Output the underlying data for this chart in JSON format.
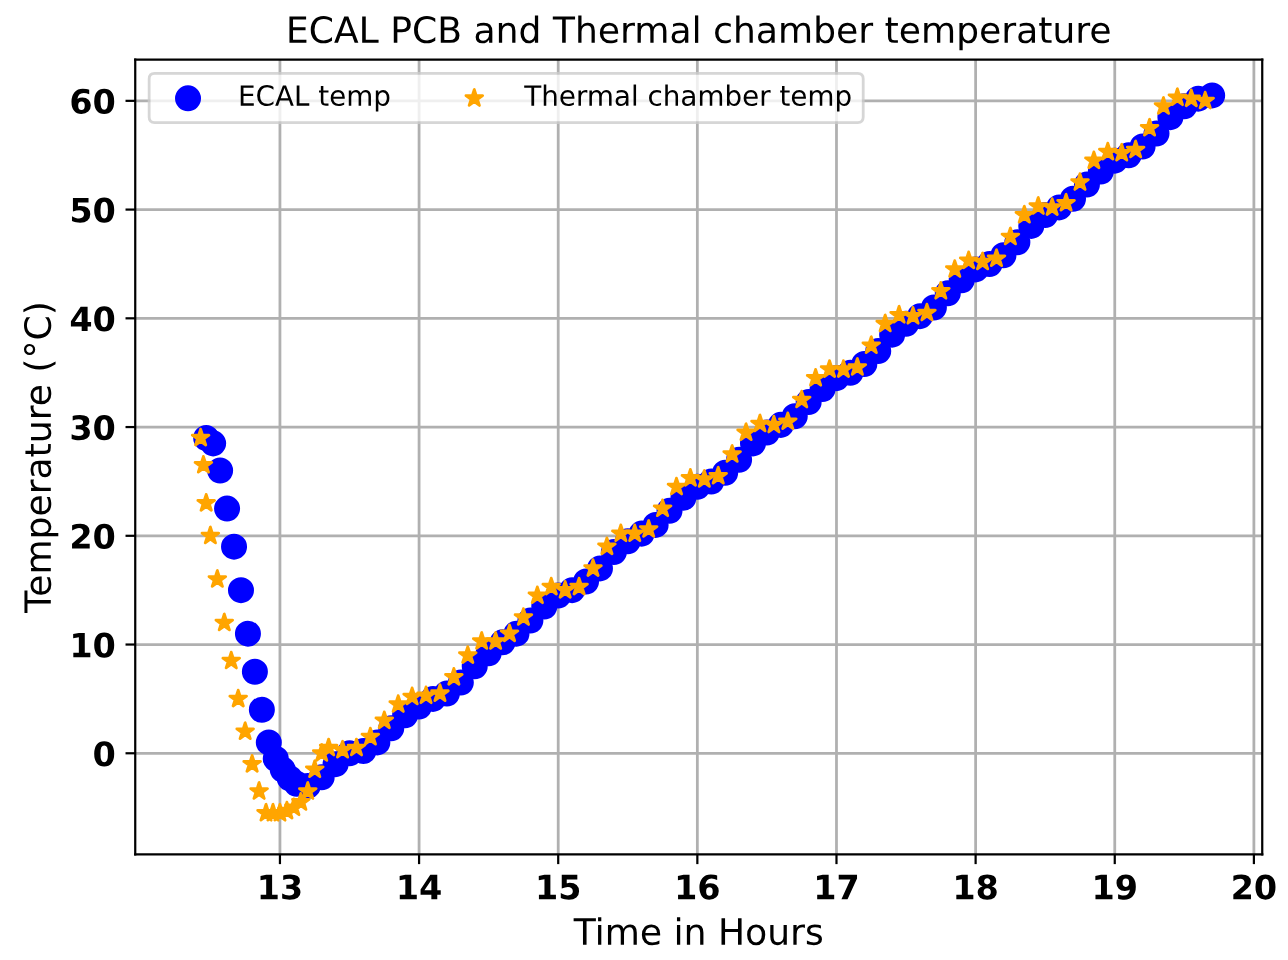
{
  "chart_data": {
    "type": "scatter",
    "title": "ECAL PCB and Thermal chamber temperature",
    "xlabel": "Time in Hours",
    "ylabel": "Temperature (°C)",
    "xlim": [
      11.96,
      20.06
    ],
    "ylim": [
      -9.3,
      63.8
    ],
    "xticks": [
      13,
      14,
      15,
      16,
      17,
      18,
      19,
      20
    ],
    "yticks": [
      0,
      10,
      20,
      30,
      40,
      50,
      60
    ],
    "grid": true,
    "legend": "top left",
    "series": [
      {
        "name": "ECAL temp",
        "color": "#0000ff",
        "marker": "circle",
        "x": [
          12.47,
          12.52,
          12.57,
          12.62,
          12.67,
          12.72,
          12.77,
          12.82,
          12.87,
          12.92,
          12.97,
          13.02,
          13.07,
          13.12,
          13.2,
          13.3,
          13.4,
          13.5,
          13.6,
          13.7,
          13.8,
          13.9,
          14.0,
          14.1,
          14.2,
          14.3,
          14.4,
          14.5,
          14.6,
          14.7,
          14.8,
          14.9,
          15.0,
          15.1,
          15.2,
          15.3,
          15.4,
          15.5,
          15.6,
          15.7,
          15.8,
          15.9,
          16.0,
          16.1,
          16.2,
          16.3,
          16.4,
          16.5,
          16.6,
          16.7,
          16.8,
          16.9,
          17.0,
          17.1,
          17.2,
          17.3,
          17.4,
          17.5,
          17.6,
          17.7,
          17.8,
          17.9,
          18.0,
          18.1,
          18.2,
          18.3,
          18.4,
          18.5,
          18.6,
          18.7,
          18.8,
          18.9,
          19.0,
          19.1,
          19.2,
          19.3,
          19.4,
          19.5,
          19.6,
          19.7
        ],
        "values": [
          29,
          28.5,
          26,
          22.5,
          19,
          15,
          11,
          7.5,
          4,
          1,
          -0.5,
          -1.5,
          -2.3,
          -2.8,
          -3,
          -2.2,
          -1,
          0,
          0.2,
          1,
          2.3,
          3.5,
          4.3,
          5,
          5.5,
          6.5,
          8,
          9.2,
          10.2,
          11,
          12.2,
          13.5,
          14.5,
          15,
          15.8,
          17,
          18.5,
          19.5,
          20.2,
          21,
          22.3,
          23.5,
          24.5,
          25,
          25.8,
          27,
          28.5,
          29.5,
          30.2,
          31,
          32.3,
          33.5,
          34.5,
          35,
          35.8,
          37,
          38.5,
          39.5,
          40.2,
          41,
          42.3,
          43.5,
          44.5,
          45,
          45.8,
          47,
          48.5,
          49.5,
          50.2,
          51,
          52.3,
          53.5,
          54.5,
          55,
          55.8,
          57,
          58.5,
          59.5,
          60.2,
          60.5
        ]
      },
      {
        "name": "Thermal chamber temp",
        "color": "#ffa500",
        "marker": "star",
        "x": [
          12.43,
          12.45,
          12.47,
          12.5,
          12.55,
          12.6,
          12.65,
          12.7,
          12.75,
          12.8,
          12.85,
          12.9,
          12.95,
          13.0,
          13.05,
          13.1,
          13.15,
          13.2,
          13.25,
          13.3,
          13.35,
          13.45,
          13.55,
          13.65,
          13.75,
          13.85,
          13.95,
          14.05,
          14.15,
          14.25,
          14.35,
          14.45,
          14.55,
          14.65,
          14.75,
          14.85,
          14.95,
          15.05,
          15.15,
          15.25,
          15.35,
          15.45,
          15.55,
          15.65,
          15.75,
          15.85,
          15.95,
          16.05,
          16.15,
          16.25,
          16.35,
          16.45,
          16.55,
          16.65,
          16.75,
          16.85,
          16.95,
          17.05,
          17.15,
          17.25,
          17.35,
          17.45,
          17.55,
          17.65,
          17.75,
          17.85,
          17.95,
          18.05,
          18.15,
          18.25,
          18.35,
          18.45,
          18.55,
          18.65,
          18.75,
          18.85,
          18.95,
          19.05,
          19.15,
          19.25,
          19.35,
          19.45,
          19.55,
          19.65
        ],
        "values": [
          29,
          26.5,
          23,
          20,
          16,
          12,
          8.5,
          5,
          2,
          -1,
          -3.5,
          -5.5,
          -5.5,
          -5.5,
          -5.3,
          -5,
          -4.5,
          -3.5,
          -1.5,
          0,
          0.5,
          0.3,
          0.5,
          1.5,
          3,
          4.5,
          5.2,
          5.3,
          5.5,
          7,
          9,
          10.3,
          10.3,
          11,
          12.5,
          14.5,
          15.3,
          15,
          15.3,
          17,
          19,
          20.2,
          20.2,
          20.6,
          22.5,
          24.5,
          25.3,
          25.2,
          25.5,
          27.5,
          29.5,
          30.3,
          30.2,
          30.5,
          32.5,
          34.5,
          35.3,
          35.3,
          35.5,
          37.5,
          39.5,
          40.3,
          40.2,
          40.5,
          42.5,
          44.5,
          45.3,
          45.2,
          45.5,
          47.5,
          49.5,
          50.3,
          50.2,
          50.6,
          52.5,
          54.5,
          55.3,
          55.2,
          55.5,
          57.5,
          59.5,
          60.3,
          60.2,
          60
        ]
      }
    ]
  }
}
